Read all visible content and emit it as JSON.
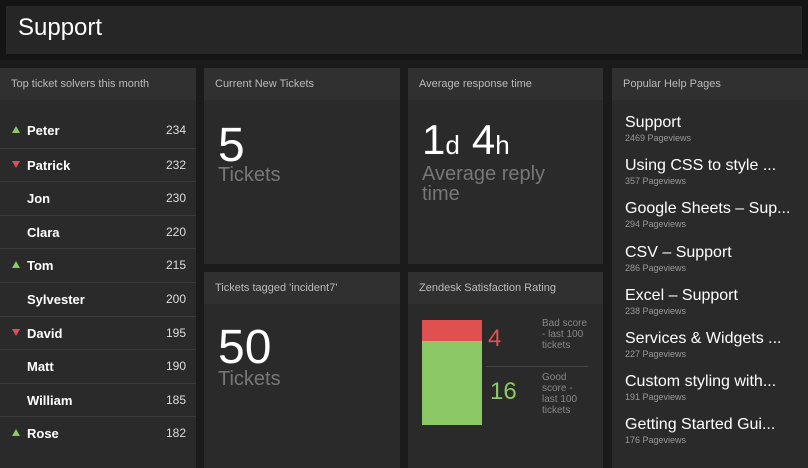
{
  "header": {
    "title": "Support"
  },
  "solvers": {
    "title": "Top ticket solvers this month",
    "rows": [
      {
        "name": "Peter",
        "count": 234,
        "trend": "up"
      },
      {
        "name": "Patrick",
        "count": 232,
        "trend": "down"
      },
      {
        "name": "Jon",
        "count": 230
      },
      {
        "name": "Clara",
        "count": 220
      },
      {
        "name": "Tom",
        "count": 215,
        "trend": "up"
      },
      {
        "name": "Sylvester",
        "count": 200
      },
      {
        "name": "David",
        "count": 195,
        "trend": "down"
      },
      {
        "name": "Matt",
        "count": 190
      },
      {
        "name": "William",
        "count": 185
      },
      {
        "name": "Rose",
        "count": 182,
        "trend": "up"
      }
    ]
  },
  "new_tickets": {
    "title": "Current New Tickets",
    "value": 5,
    "unit": "Tickets"
  },
  "response": {
    "title": "Average response time",
    "parts": [
      {
        "number": 1,
        "unit": "d"
      },
      {
        "number": 4,
        "unit": "h"
      }
    ],
    "caption": "Average reply time"
  },
  "tagged": {
    "title": "Tickets tagged 'incident7'",
    "value": 50,
    "unit": "Tickets"
  },
  "satisfaction": {
    "title": "Zendesk Satisfaction Rating",
    "bad": {
      "value": 4,
      "label": "Bad score - last 100 tickets",
      "color": "#e05050"
    },
    "good": {
      "value": 16,
      "label": "Good score - last 100 tickets",
      "color": "#8cc866"
    }
  },
  "pages": {
    "title": "Popular Help Pages",
    "items": [
      {
        "title": "Support",
        "views": "2469 Pageviews"
      },
      {
        "title": "Using CSS to style ...",
        "views": "357 Pageviews"
      },
      {
        "title": "Google Sheets – Sup...",
        "views": "294 Pageviews"
      },
      {
        "title": "CSV – Support",
        "views": "286 Pageviews"
      },
      {
        "title": "Excel – Support",
        "views": "238 Pageviews"
      },
      {
        "title": "Services & Widgets ...",
        "views": "227 Pageviews"
      },
      {
        "title": "Custom styling with...",
        "views": "191 Pageviews"
      },
      {
        "title": "Getting Started Gui...",
        "views": "176 Pageviews"
      }
    ]
  }
}
